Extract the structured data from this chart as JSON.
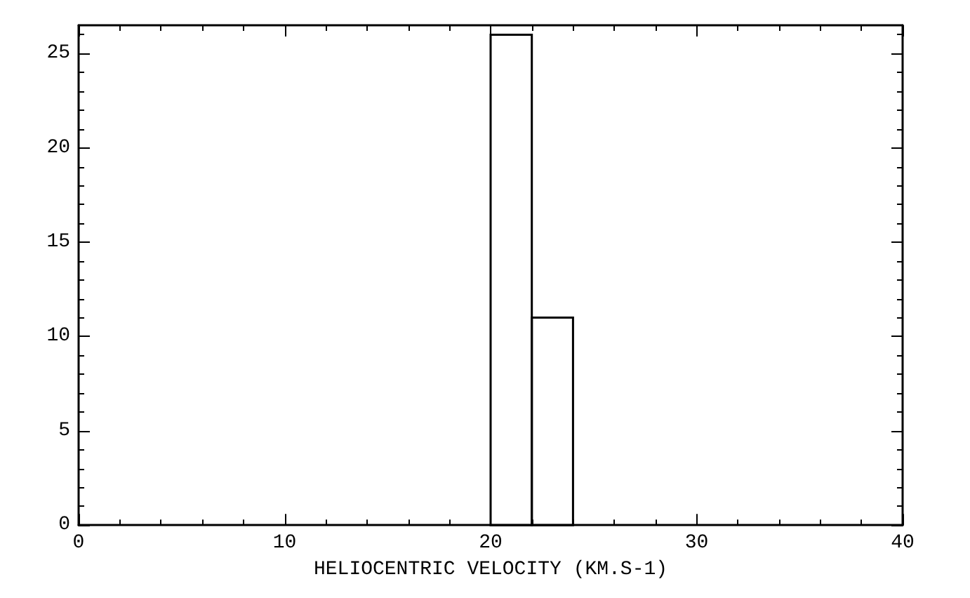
{
  "chart_data": {
    "type": "histogram",
    "xlabel": "HELIOCENTRIC VELOCITY (KM.S-1)",
    "bins": [
      20,
      22,
      24
    ],
    "values": [
      26,
      11
    ],
    "color": "#000000",
    "xlim": [
      0,
      40
    ],
    "xticks": [
      0,
      10,
      20,
      30,
      40
    ],
    "ylim": [
      0,
      26.5
    ],
    "yticks": [
      0,
      5,
      10,
      15,
      20,
      25
    ],
    "grid": false
  }
}
